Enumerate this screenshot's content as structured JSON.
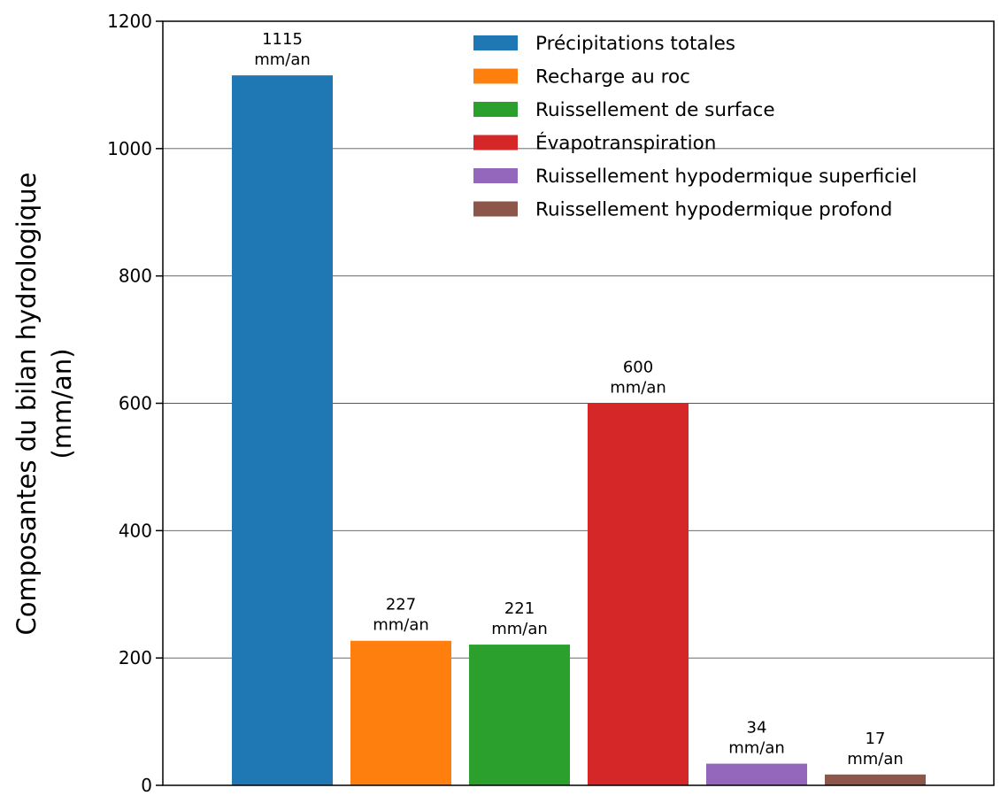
{
  "chart_data": {
    "type": "bar",
    "ylabel_lines": [
      "Composantes du bilan hydrologique",
      "(mm/an)"
    ],
    "xlabel": "",
    "ylim": [
      0,
      1200
    ],
    "yticks": [
      0,
      200,
      400,
      600,
      800,
      1000,
      1200
    ],
    "grid": "horizontal",
    "legend_position": "top-right",
    "unit": "mm/an",
    "series": [
      {
        "name": "Précipitations totales",
        "value": 1115,
        "color": "#1f77b4"
      },
      {
        "name": "Recharge au roc",
        "value": 227,
        "color": "#ff7f0e"
      },
      {
        "name": "Ruissellement de surface",
        "value": 221,
        "color": "#2ca02c"
      },
      {
        "name": "Évapotranspiration",
        "value": 600,
        "color": "#d62728"
      },
      {
        "name": "Ruissellement hypodermique superficiel",
        "value": 34,
        "color": "#9467bd"
      },
      {
        "name": "Ruissellement hypodermique profond",
        "value": 17,
        "color": "#8c564b"
      }
    ]
  }
}
